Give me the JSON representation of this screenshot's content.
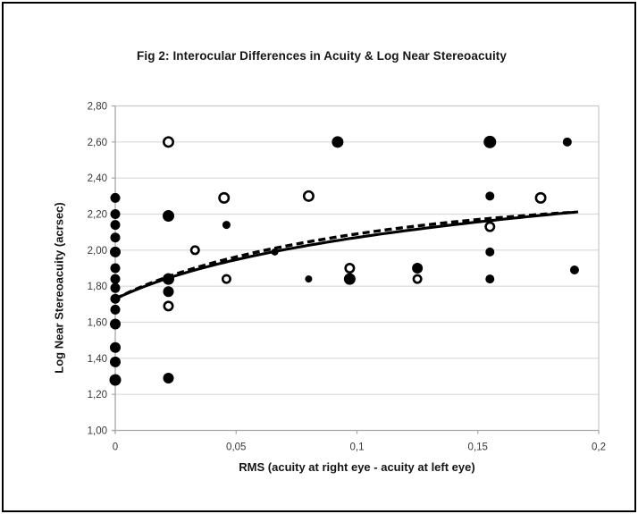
{
  "figure": {
    "title": "Fig 2: Interocular Differences in Acuity & Log Near Stereoacuity"
  },
  "chart_data": {
    "type": "scatter",
    "title": "Fig 2: Interocular Differences in Acuity & Log Near Stereoacuity",
    "xlabel": "RMS (acuity at right eye - acuity at left eye)",
    "ylabel": "Log Near Stereoacuity (acrsec)",
    "xlim": [
      0,
      0.2
    ],
    "ylim": [
      1.0,
      2.8
    ],
    "grid": "horizontal",
    "legend": "none",
    "decimal_separator": ",",
    "x_ticks": [
      {
        "value": 0.0,
        "label": "0"
      },
      {
        "value": 0.05,
        "label": "0,05"
      },
      {
        "value": 0.1,
        "label": "0,1"
      },
      {
        "value": 0.15,
        "label": "0,15"
      },
      {
        "value": 0.2,
        "label": "0,2"
      }
    ],
    "y_ticks": [
      {
        "value": 2.8,
        "label": "2,80"
      },
      {
        "value": 2.6,
        "label": "2,60"
      },
      {
        "value": 2.4,
        "label": "2,40"
      },
      {
        "value": 2.2,
        "label": "2,20"
      },
      {
        "value": 2.0,
        "label": "2,00"
      },
      {
        "value": 1.8,
        "label": "1,80"
      },
      {
        "value": 1.6,
        "label": "1,60"
      },
      {
        "value": 1.4,
        "label": "1,40"
      },
      {
        "value": 1.2,
        "label": "1,20"
      },
      {
        "value": 1.0,
        "label": "1,00"
      }
    ],
    "series": [
      {
        "name": "filled-points",
        "marker": "filled-circle",
        "color": "#000000",
        "points": [
          [
            0,
            2.29,
            11
          ],
          [
            0,
            2.2,
            11
          ],
          [
            0,
            2.14,
            11
          ],
          [
            0,
            2.07,
            11
          ],
          [
            0,
            1.99,
            12
          ],
          [
            0,
            1.9,
            11
          ],
          [
            0,
            1.84,
            11
          ],
          [
            0,
            1.79,
            11
          ],
          [
            0,
            1.73,
            11
          ],
          [
            0,
            1.67,
            11
          ],
          [
            0,
            1.59,
            12
          ],
          [
            0,
            1.46,
            12
          ],
          [
            0,
            1.38,
            12
          ],
          [
            0,
            1.28,
            13
          ],
          [
            0.022,
            2.19,
            13
          ],
          [
            0.022,
            1.84,
            13
          ],
          [
            0.022,
            1.77,
            12
          ],
          [
            0.022,
            1.29,
            12
          ],
          [
            0.046,
            2.14,
            9
          ],
          [
            0.066,
            1.99,
            8
          ],
          [
            0.08,
            1.84,
            8
          ],
          [
            0.092,
            2.6,
            13
          ],
          [
            0.097,
            1.84,
            13
          ],
          [
            0.125,
            1.9,
            12
          ],
          [
            0.155,
            2.6,
            14
          ],
          [
            0.155,
            2.3,
            10
          ],
          [
            0.155,
            1.99,
            10
          ],
          [
            0.155,
            1.84,
            10
          ],
          [
            0.187,
            2.6,
            10
          ],
          [
            0.19,
            1.89,
            10
          ]
        ]
      },
      {
        "name": "open-points",
        "marker": "open-circle",
        "color": "#000000",
        "fill": "#ffffff",
        "points": [
          [
            0.022,
            2.6,
            13
          ],
          [
            0.022,
            1.69,
            12
          ],
          [
            0.033,
            2.0,
            11
          ],
          [
            0.045,
            2.29,
            13
          ],
          [
            0.046,
            1.84,
            11
          ],
          [
            0.08,
            2.3,
            13
          ],
          [
            0.097,
            1.9,
            12
          ],
          [
            0.125,
            1.84,
            11
          ],
          [
            0.155,
            2.13,
            12
          ],
          [
            0.176,
            2.29,
            13
          ]
        ]
      }
    ],
    "trend_lines": [
      {
        "name": "solid-trend",
        "style": "solid",
        "equation": "y = 2.632 + 0.291*ln(x + 0.045)",
        "A": 2.632,
        "B": 0.291,
        "C": 0.045,
        "bump": 0,
        "x_start": 0,
        "x_end": 0.1915
      },
      {
        "name": "dashed-trend",
        "style": "dashed",
        "equation": "y = 2.632 + 0.291*ln(x + 0.045) + 0.08*t*(1-t)",
        "A": 2.632,
        "B": 0.291,
        "C": 0.045,
        "bump": 0.08,
        "x_start": 0,
        "x_end": 0.19
      }
    ],
    "colors": {
      "marker": "#000000",
      "gridline": "#d9d9d9",
      "axis": "#a6a6a6",
      "plot_border": "#c9c9c9",
      "text": "#383838",
      "frame": "#000000"
    }
  }
}
